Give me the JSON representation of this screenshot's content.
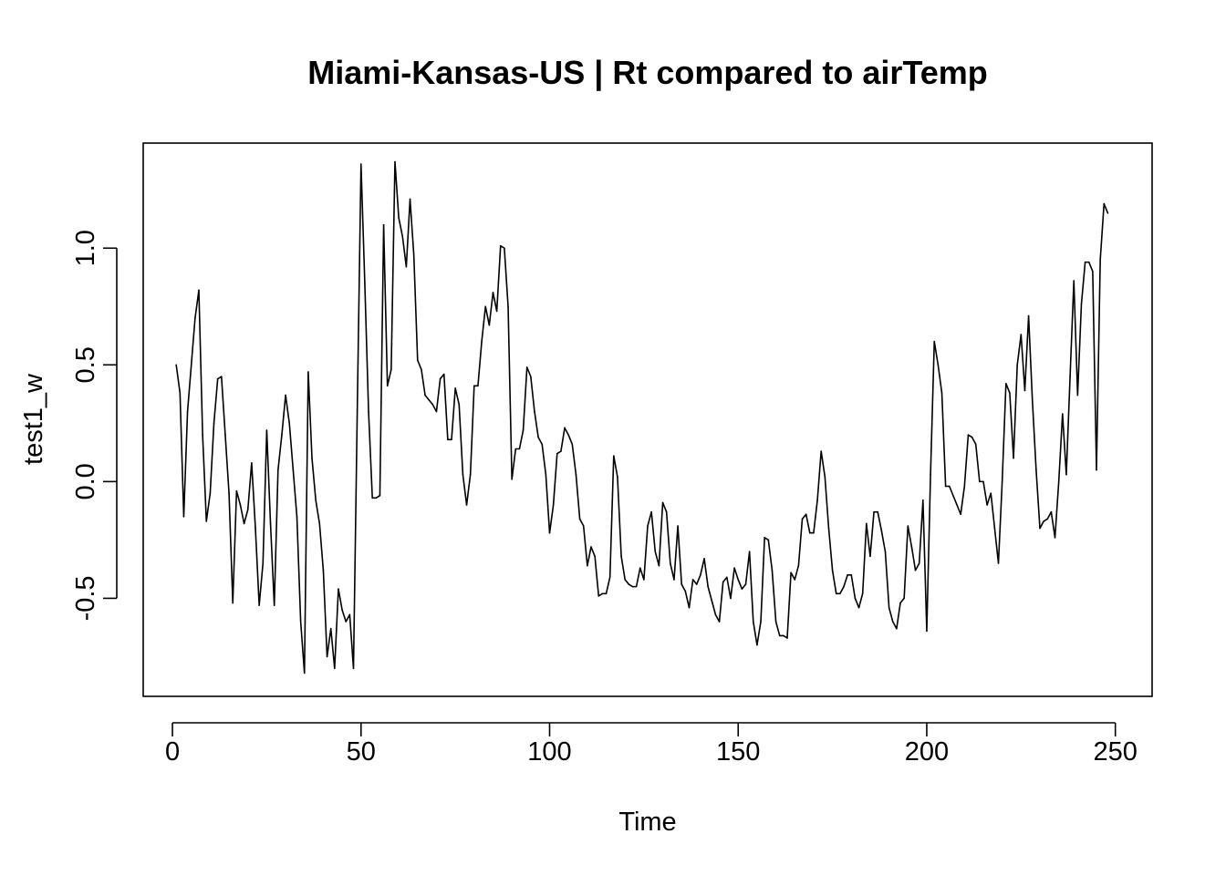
{
  "chart_data": {
    "type": "line",
    "title": "Miami-Kansas-US | Rt compared to airTemp",
    "xlabel": "Time",
    "ylabel": "test1_w",
    "xlim": [
      -7.75,
      259.75
    ],
    "ylim": [
      -0.92,
      1.45
    ],
    "x_ticks": [
      0,
      50,
      100,
      150,
      200,
      250
    ],
    "x_tick_labels": [
      "0",
      "50",
      "100",
      "150",
      "200",
      "250"
    ],
    "y_ticks": [
      -0.5,
      0.0,
      0.5,
      1.0
    ],
    "y_tick_labels": [
      "-0.5",
      "0.0",
      "0.5",
      "1.0"
    ],
    "grid": false,
    "legend": "none",
    "line_color": "#000000",
    "series": [
      {
        "x_start": 1,
        "x_step": 1,
        "values": [
          0.5,
          0.38,
          -0.15,
          0.3,
          0.5,
          0.7,
          0.82,
          0.2,
          -0.17,
          -0.05,
          0.25,
          0.44,
          0.45,
          0.2,
          -0.05,
          -0.52,
          -0.04,
          -0.1,
          -0.18,
          -0.12,
          0.08,
          -0.2,
          -0.53,
          -0.35,
          0.22,
          -0.18,
          -0.53,
          0.05,
          0.2,
          0.37,
          0.25,
          0.05,
          -0.15,
          -0.6,
          -0.82,
          0.47,
          0.1,
          -0.08,
          -0.18,
          -0.38,
          -0.75,
          -0.63,
          -0.8,
          -0.46,
          -0.55,
          -0.6,
          -0.57,
          -0.8,
          0.3,
          1.36,
          0.85,
          0.3,
          -0.07,
          -0.07,
          -0.06,
          1.1,
          0.41,
          0.48,
          1.37,
          1.13,
          1.05,
          0.92,
          1.21,
          0.97,
          0.52,
          0.48,
          0.37,
          0.35,
          0.33,
          0.3,
          0.44,
          0.46,
          0.18,
          0.18,
          0.4,
          0.33,
          0.03,
          -0.1,
          0.03,
          0.41,
          0.41,
          0.6,
          0.75,
          0.67,
          0.81,
          0.73,
          1.01,
          1.0,
          0.75,
          0.01,
          0.14,
          0.14,
          0.22,
          0.49,
          0.45,
          0.3,
          0.19,
          0.16,
          0.03,
          -0.22,
          -0.1,
          0.12,
          0.13,
          0.23,
          0.2,
          0.16,
          0.03,
          -0.16,
          -0.19,
          -0.36,
          -0.28,
          -0.32,
          -0.49,
          -0.48,
          -0.48,
          -0.41,
          0.11,
          0.02,
          -0.32,
          -0.42,
          -0.44,
          -0.45,
          -0.45,
          -0.37,
          -0.42,
          -0.19,
          -0.13,
          -0.3,
          -0.36,
          -0.09,
          -0.13,
          -0.35,
          -0.42,
          -0.19,
          -0.44,
          -0.47,
          -0.54,
          -0.42,
          -0.44,
          -0.4,
          -0.33,
          -0.45,
          -0.51,
          -0.57,
          -0.6,
          -0.43,
          -0.41,
          -0.5,
          -0.37,
          -0.42,
          -0.46,
          -0.44,
          -0.3,
          -0.6,
          -0.7,
          -0.6,
          -0.24,
          -0.25,
          -0.38,
          -0.6,
          -0.66,
          -0.66,
          -0.67,
          -0.39,
          -0.42,
          -0.36,
          -0.16,
          -0.14,
          -0.22,
          -0.22,
          -0.08,
          0.13,
          0.02,
          -0.2,
          -0.38,
          -0.48,
          -0.48,
          -0.45,
          -0.4,
          -0.4,
          -0.5,
          -0.54,
          -0.48,
          -0.18,
          -0.32,
          -0.13,
          -0.13,
          -0.21,
          -0.3,
          -0.54,
          -0.6,
          -0.63,
          -0.52,
          -0.5,
          -0.19,
          -0.28,
          -0.38,
          -0.35,
          -0.08,
          -0.64,
          0.03,
          0.6,
          0.5,
          0.38,
          -0.02,
          -0.02,
          -0.06,
          -0.1,
          -0.14,
          -0.02,
          0.2,
          0.19,
          0.16,
          0.0,
          0.0,
          -0.1,
          -0.05,
          -0.2,
          -0.35,
          0.0,
          0.42,
          0.38,
          0.1,
          0.5,
          0.63,
          0.39,
          0.71,
          0.35,
          0.05,
          -0.2,
          -0.17,
          -0.16,
          -0.13,
          -0.24,
          0.0,
          0.29,
          0.03,
          0.45,
          0.86,
          0.37,
          0.76,
          0.94,
          0.94,
          0.9,
          0.05,
          0.95,
          1.19,
          1.15
        ]
      }
    ]
  }
}
